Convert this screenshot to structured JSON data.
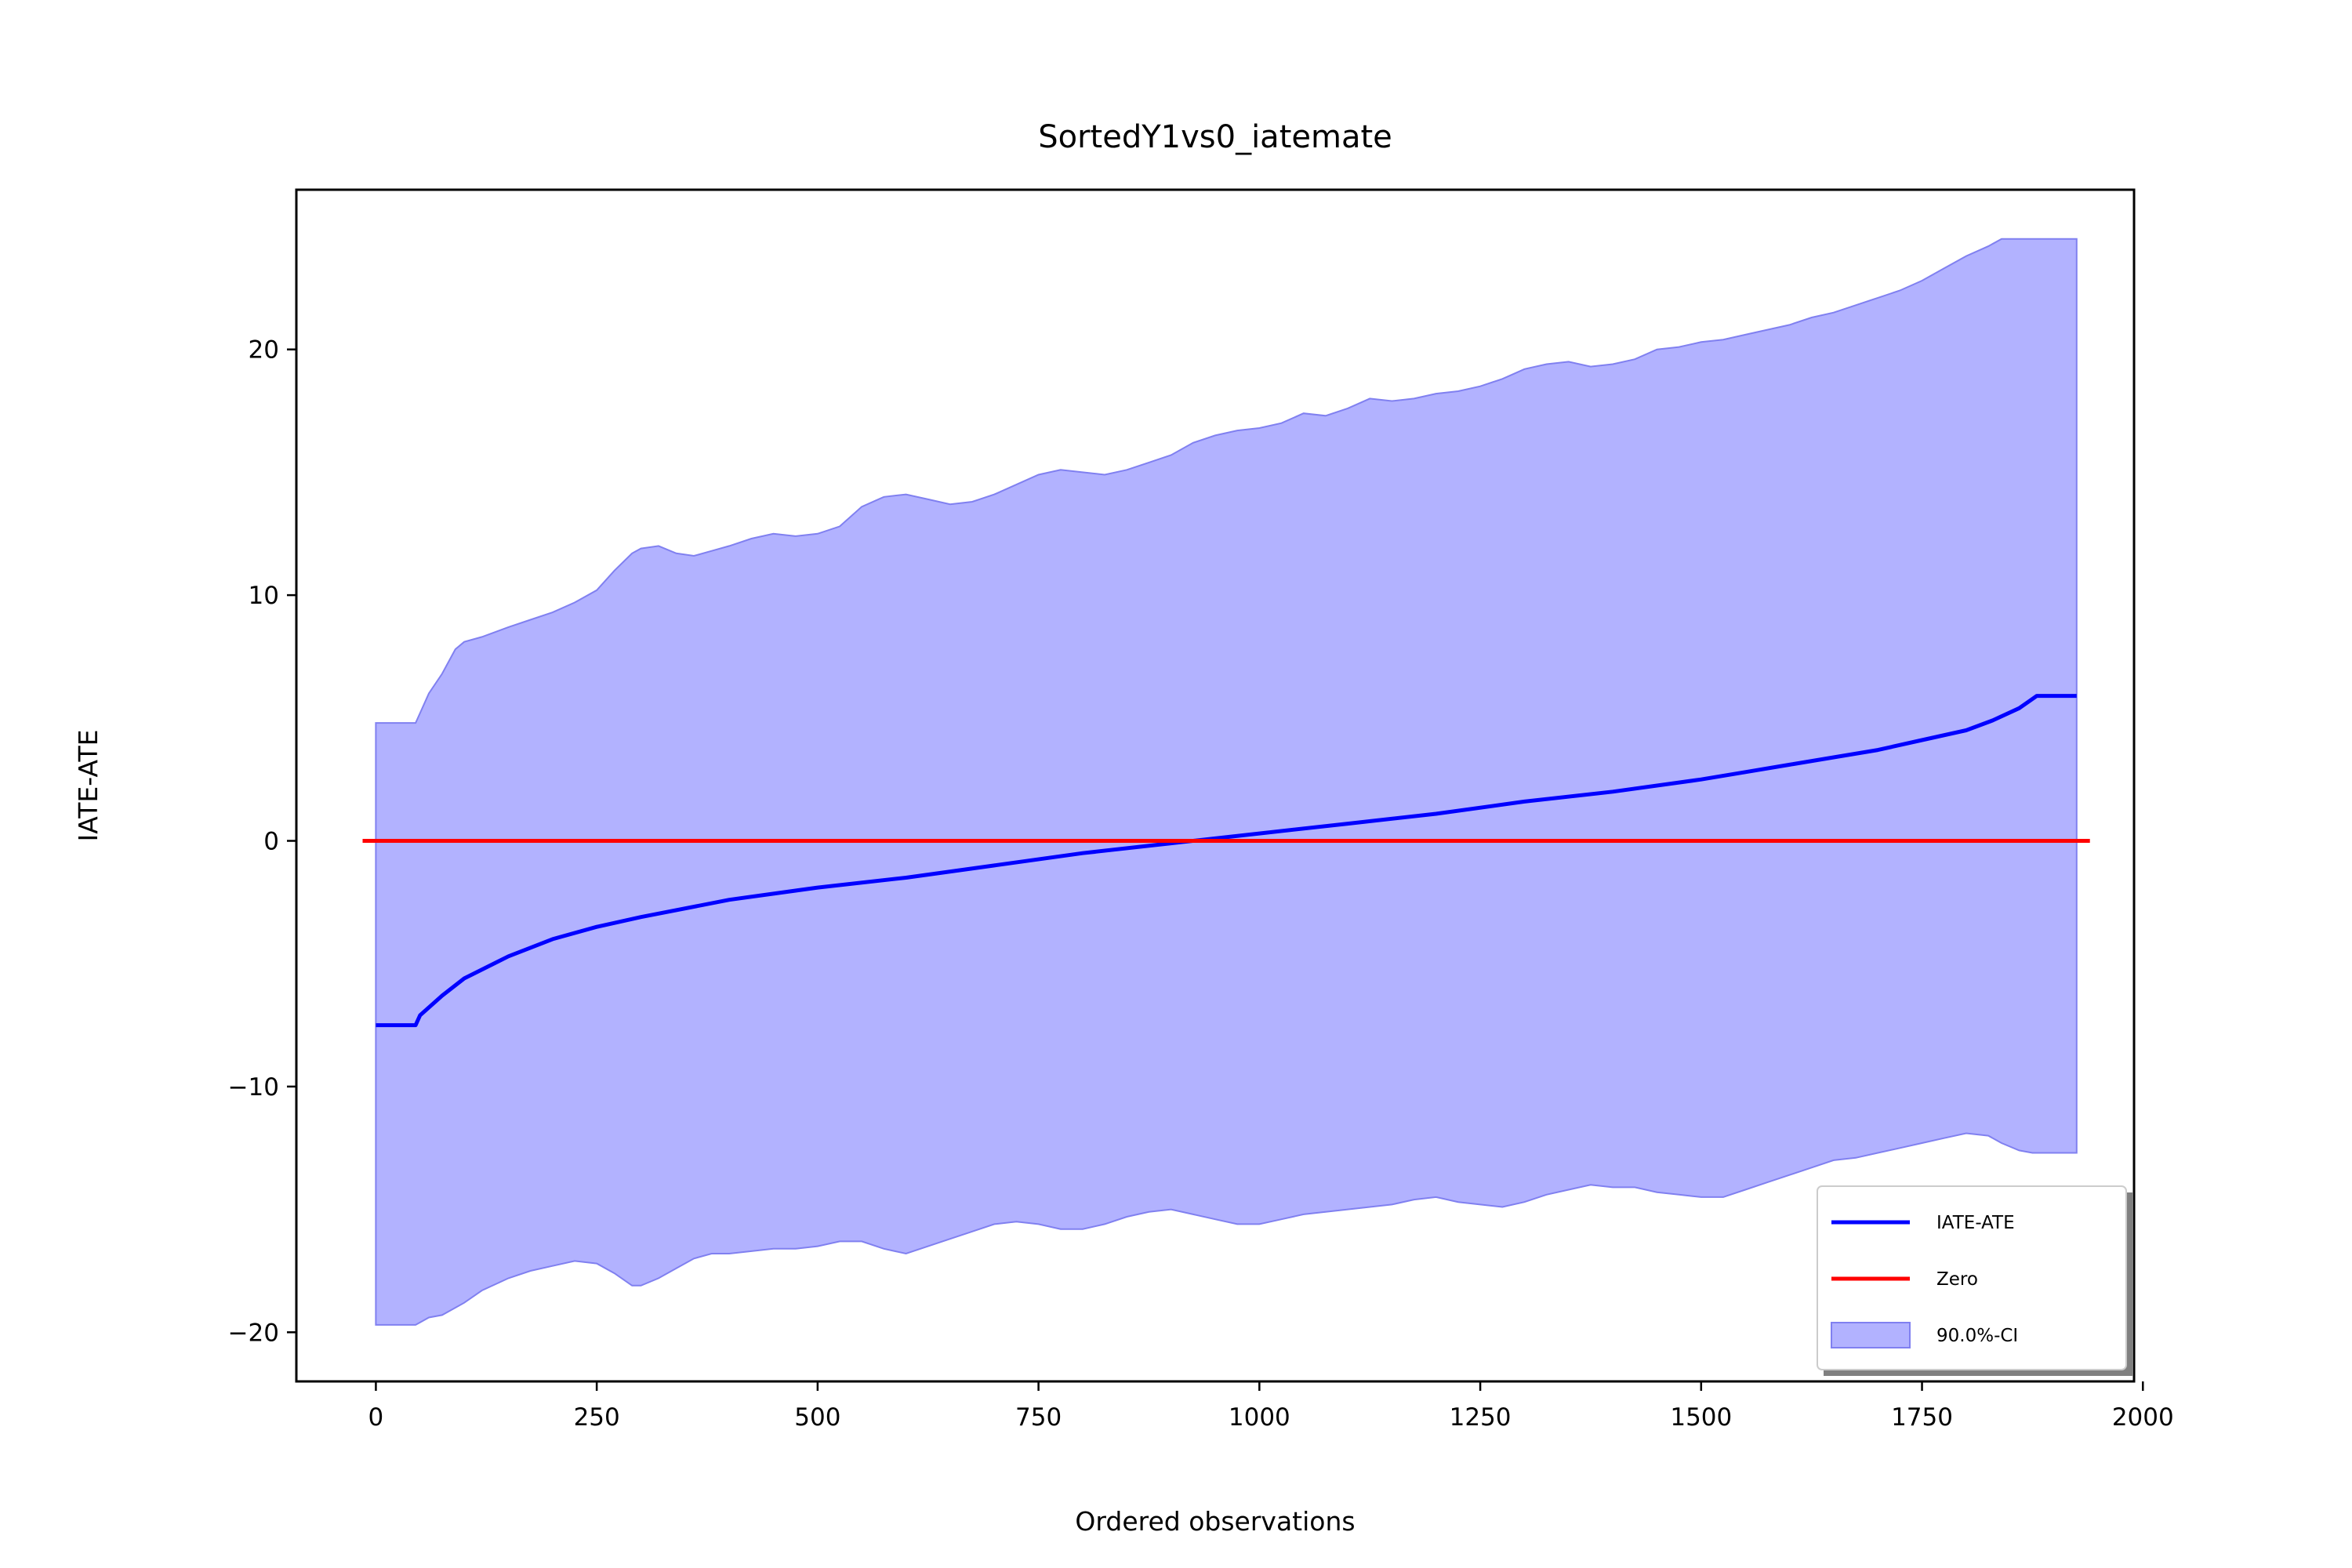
{
  "chart_data": {
    "type": "line",
    "title": "SortedY1vs0_iatemate",
    "xlabel": "Ordered observations",
    "ylabel": "IATE-ATE",
    "xlim": [
      -90,
      1990
    ],
    "ylim": [
      -22,
      26.5
    ],
    "xticks": [
      0,
      250,
      500,
      750,
      1000,
      1250,
      1500,
      1750,
      2000
    ],
    "yticks": [
      -20,
      -10,
      0,
      10,
      20
    ],
    "ytick_labels": [
      "−20",
      "−10",
      "0",
      "10",
      "20"
    ],
    "grid": false,
    "legend_position": "lower-right",
    "series": [
      {
        "name": "IATE-ATE",
        "color": "#0000ff",
        "x": [
          0,
          45,
          50,
          75,
          100,
          150,
          200,
          250,
          300,
          400,
          500,
          600,
          700,
          800,
          900,
          1000,
          1100,
          1200,
          1300,
          1400,
          1500,
          1550,
          1600,
          1650,
          1700,
          1750,
          1800,
          1830,
          1860,
          1880,
          1925
        ],
        "y": [
          -7.5,
          -7.5,
          -7.1,
          -6.3,
          -5.6,
          -4.7,
          -4.0,
          -3.5,
          -3.1,
          -2.4,
          -1.9,
          -1.5,
          -1.0,
          -0.5,
          -0.1,
          0.3,
          0.7,
          1.1,
          1.6,
          2.0,
          2.5,
          2.8,
          3.1,
          3.4,
          3.7,
          4.1,
          4.5,
          4.9,
          5.4,
          5.9,
          5.9
        ]
      },
      {
        "name": "Zero",
        "color": "#ff0000",
        "x": [
          -15,
          1940
        ],
        "y": [
          0,
          0
        ]
      }
    ],
    "band": {
      "name": "90.0%-CI",
      "fill": "#b2b2ff",
      "edge": "#8080f0",
      "x": [
        0,
        45,
        50,
        60,
        75,
        90,
        100,
        120,
        150,
        175,
        200,
        225,
        250,
        270,
        290,
        300,
        320,
        340,
        360,
        380,
        400,
        425,
        450,
        475,
        500,
        525,
        550,
        575,
        600,
        625,
        650,
        675,
        700,
        725,
        750,
        775,
        800,
        825,
        850,
        875,
        900,
        925,
        950,
        975,
        1000,
        1025,
        1050,
        1075,
        1100,
        1125,
        1150,
        1175,
        1200,
        1225,
        1250,
        1275,
        1300,
        1325,
        1350,
        1375,
        1400,
        1425,
        1450,
        1475,
        1500,
        1525,
        1550,
        1575,
        1600,
        1625,
        1650,
        1675,
        1700,
        1725,
        1750,
        1775,
        1800,
        1825,
        1840,
        1860,
        1875,
        1880,
        1925
      ],
      "upper": [
        4.8,
        4.8,
        5.2,
        6.0,
        6.8,
        7.8,
        8.1,
        8.3,
        8.7,
        9.0,
        9.3,
        9.7,
        10.2,
        11.0,
        11.7,
        11.9,
        12.0,
        11.7,
        11.6,
        11.8,
        12.0,
        12.3,
        12.5,
        12.4,
        12.5,
        12.8,
        13.6,
        14.0,
        14.1,
        13.9,
        13.7,
        13.8,
        14.1,
        14.5,
        14.9,
        15.1,
        15.0,
        14.9,
        15.1,
        15.4,
        15.7,
        16.2,
        16.5,
        16.7,
        16.8,
        17.0,
        17.4,
        17.3,
        17.6,
        18.0,
        17.9,
        18.0,
        18.2,
        18.3,
        18.5,
        18.8,
        19.2,
        19.4,
        19.5,
        19.3,
        19.4,
        19.6,
        20.0,
        20.1,
        20.3,
        20.4,
        20.6,
        20.8,
        21.0,
        21.3,
        21.5,
        21.8,
        22.1,
        22.4,
        22.8,
        23.3,
        23.8,
        24.2,
        24.5,
        24.5,
        24.5,
        24.5,
        24.5
      ],
      "lower": [
        -19.7,
        -19.7,
        -19.6,
        -19.4,
        -19.3,
        -19.0,
        -18.8,
        -18.3,
        -17.8,
        -17.5,
        -17.3,
        -17.1,
        -17.2,
        -17.6,
        -18.1,
        -18.1,
        -17.8,
        -17.4,
        -17.0,
        -16.8,
        -16.8,
        -16.7,
        -16.6,
        -16.6,
        -16.5,
        -16.3,
        -16.3,
        -16.6,
        -16.8,
        -16.5,
        -16.2,
        -15.9,
        -15.6,
        -15.5,
        -15.6,
        -15.8,
        -15.8,
        -15.6,
        -15.3,
        -15.1,
        -15.0,
        -15.2,
        -15.4,
        -15.6,
        -15.6,
        -15.4,
        -15.2,
        -15.1,
        -15.0,
        -14.9,
        -14.8,
        -14.6,
        -14.5,
        -14.7,
        -14.8,
        -14.9,
        -14.7,
        -14.4,
        -14.2,
        -14.0,
        -14.1,
        -14.1,
        -14.3,
        -14.4,
        -14.5,
        -14.5,
        -14.2,
        -13.9,
        -13.6,
        -13.3,
        -13.0,
        -12.9,
        -12.7,
        -12.5,
        -12.3,
        -12.1,
        -11.9,
        -12.0,
        -12.3,
        -12.6,
        -12.7,
        -12.7,
        -12.7
      ]
    }
  }
}
